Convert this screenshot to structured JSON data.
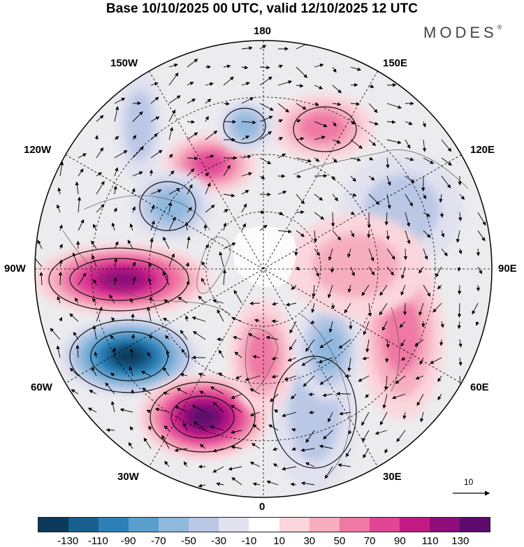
{
  "title": "Base 10/10/2025 00 UTC, valid 12/10/2025 12 UTC",
  "brand": "MODES",
  "brand_mark": "®",
  "map": {
    "projection_labels": {
      "top": "180",
      "bottom": "0",
      "left": "90W",
      "right": "90E",
      "upper_left": "150W",
      "upper_right": "150E",
      "mid_upper_left": "120W",
      "mid_upper_right": "120E",
      "mid_lower_left": "60W",
      "mid_lower_right": "60E",
      "lower_left": "30W",
      "lower_right": "30E"
    },
    "vector_scale_label": "10",
    "anomaly_centers": [
      {
        "name": "positive",
        "value": 120
      },
      {
        "name": "negative",
        "value": -130
      },
      {
        "name": "positive",
        "value": 130
      },
      {
        "name": "positive",
        "value": 70
      },
      {
        "name": "negative",
        "value": -50
      },
      {
        "name": "positive",
        "value": 50
      },
      {
        "name": "negative",
        "value": -60
      },
      {
        "name": "negative",
        "value": -40
      },
      {
        "name": "positive",
        "value": 50
      },
      {
        "name": "positive",
        "value": 60
      },
      {
        "name": "negative",
        "value": -40
      },
      {
        "name": "negative",
        "value": -30
      },
      {
        "name": "negative",
        "value": -50
      },
      {
        "name": "positive",
        "value": 30
      }
    ]
  },
  "colorbar": {
    "colors": [
      "#0d3a5a",
      "#185f8e",
      "#2b80b8",
      "#5a9fcc",
      "#8fb8dd",
      "#bac8e6",
      "#e1e1ef",
      "#ffffff",
      "#fbd6dc",
      "#f6aebf",
      "#ef78a4",
      "#e04596",
      "#c21a85",
      "#8e0d79",
      "#5c0a6d"
    ],
    "ticks": [
      "-130",
      "-110",
      "-90",
      "-70",
      "-50",
      "-30",
      "-10",
      "10",
      "30",
      "50",
      "70",
      "90",
      "110",
      "130"
    ]
  }
}
